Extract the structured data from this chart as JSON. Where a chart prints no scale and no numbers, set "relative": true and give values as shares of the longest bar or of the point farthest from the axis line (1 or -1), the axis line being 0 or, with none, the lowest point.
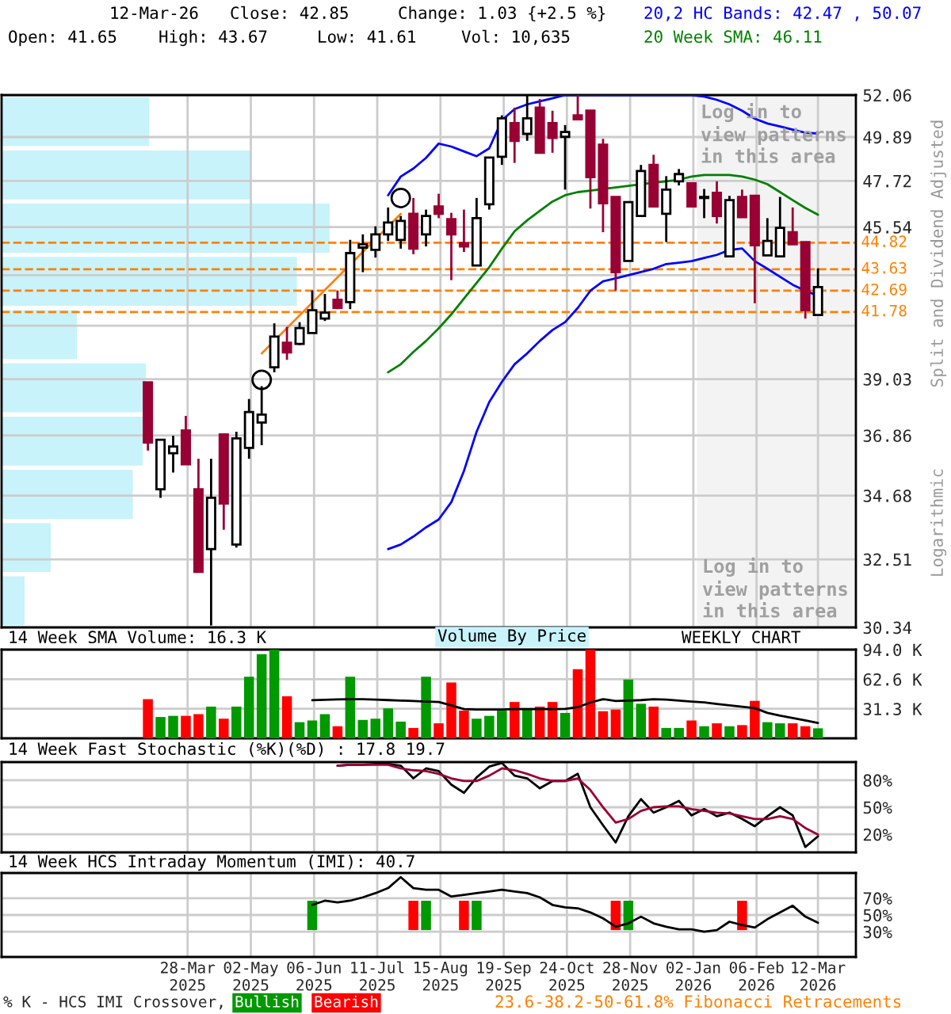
{
  "chart_data": [
    {
      "type": "candlestick",
      "ylabel": "Split and Dividend Adjusted",
      "annotations": [
        "12-Mar-26",
        "Close: 42.85",
        "Change: 1.03 {+2.5 %}",
        "Open: 41.65",
        "High: 43.67",
        "Low: 41.61",
        "Vol: 10,635",
        "Logarithmic",
        "Log in to\nview patterns\nin this area",
        "Volume By Price"
      ],
      "legend": "top right",
      "log": true,
      "grid": true,
      "tick_labels": "y",
      "x": [
        "2025-03-06",
        "2025-03-13",
        "2025-03-20",
        "2025-03-27",
        "2025-04-03",
        "2025-04-10",
        "2025-04-17",
        "2025-04-24",
        "2025-05-01",
        "2025-05-08",
        "2025-05-15",
        "2025-05-22",
        "2025-05-29",
        "2025-06-05",
        "2025-06-12",
        "2025-06-19",
        "2025-06-26",
        "2025-07-03",
        "2025-07-10",
        "2025-07-17",
        "2025-07-24",
        "2025-07-31",
        "2025-08-07",
        "2025-08-14",
        "2025-08-21",
        "2025-08-28",
        "2025-09-04",
        "2025-09-11",
        "2025-09-18",
        "2025-09-25",
        "2025-10-02",
        "2025-10-09",
        "2025-10-16",
        "2025-10-23",
        "2025-10-30",
        "2025-11-06",
        "2025-11-13",
        "2025-11-20",
        "2025-11-27",
        "2025-12-04",
        "2025-12-11",
        "2025-12-18",
        "2025-12-25",
        "2026-01-01",
        "2026-01-08",
        "2026-01-15",
        "2026-01-22",
        "2026-01-29",
        "2026-02-05",
        "2026-02-12",
        "2026-02-19",
        "2026-02-26",
        "2026-03-05",
        "2026-03-12"
      ],
      "ohlc": [
        [
          38.9,
          38.9,
          36.3,
          36.6
        ],
        [
          34.9,
          36.7,
          34.6,
          36.7
        ],
        [
          36.2,
          36.85,
          35.5,
          36.45
        ],
        [
          37.05,
          37.6,
          35.8,
          35.8
        ],
        [
          34.9,
          36.0,
          32.1,
          32.1
        ],
        [
          32.85,
          36.0,
          30.4,
          34.6
        ],
        [
          36.9,
          36.9,
          33.5,
          34.4
        ],
        [
          33.0,
          37.0,
          32.9,
          36.75
        ],
        [
          36.4,
          38.25,
          36.0,
          37.75
        ],
        [
          37.35,
          38.75,
          36.5,
          37.65
        ],
        [
          39.5,
          41.3,
          39.3,
          40.75
        ],
        [
          40.5,
          41.15,
          39.8,
          40.1
        ],
        [
          40.45,
          41.35,
          40.4,
          41.1
        ],
        [
          40.9,
          42.7,
          40.9,
          41.85
        ],
        [
          41.5,
          42.55,
          41.4,
          41.75
        ],
        [
          42.3,
          42.7,
          41.9,
          41.95
        ],
        [
          42.2,
          44.95,
          41.9,
          44.35
        ],
        [
          44.6,
          45.2,
          43.5,
          44.75
        ],
        [
          44.5,
          45.57,
          44.15,
          45.2
        ],
        [
          45.2,
          46.45,
          44.9,
          45.75
        ],
        [
          44.95,
          46.05,
          44.55,
          45.82
        ],
        [
          46.15,
          46.9,
          44.3,
          44.55
        ],
        [
          45.2,
          46.35,
          44.65,
          46.05
        ],
        [
          46.5,
          47.1,
          45.95,
          46.15
        ],
        [
          45.9,
          46.2,
          43.15,
          45.2
        ],
        [
          44.8,
          46.35,
          44.4,
          44.65
        ],
        [
          43.8,
          46.9,
          43.8,
          45.95
        ],
        [
          46.6,
          48.86,
          46.35,
          48.86
        ],
        [
          48.9,
          51.0,
          48.5,
          50.85
        ],
        [
          50.6,
          51.4,
          48.6,
          49.7
        ],
        [
          50.05,
          52.06,
          49.7,
          50.85
        ],
        [
          51.4,
          51.85,
          49.1,
          49.1
        ],
        [
          50.6,
          51.24,
          49.1,
          49.85
        ],
        [
          49.9,
          50.5,
          47.3,
          50.15
        ],
        [
          51.0,
          52.06,
          50.8,
          50.8
        ],
        [
          51.24,
          51.24,
          46.4,
          47.9
        ],
        [
          49.5,
          49.8,
          45.3,
          46.65
        ],
        [
          46.95,
          46.95,
          42.7,
          43.5
        ],
        [
          44.0,
          46.7,
          44.0,
          46.7
        ],
        [
          46.05,
          48.5,
          46.05,
          48.2
        ],
        [
          48.5,
          49.0,
          46.5,
          46.5
        ],
        [
          46.15,
          47.95,
          44.85,
          47.3
        ],
        [
          47.7,
          48.3,
          47.5,
          48.05
        ],
        [
          47.6,
          47.6,
          46.5,
          46.5
        ],
        [
          46.9,
          47.33,
          45.95,
          46.95
        ],
        [
          47.15,
          47.7,
          45.7,
          46.05
        ],
        [
          44.2,
          47.0,
          44.2,
          46.8
        ],
        [
          46.95,
          47.3,
          46.0,
          46.0
        ],
        [
          47.0,
          47.0,
          42.15,
          44.7
        ],
        [
          44.25,
          45.95,
          44.25,
          44.9
        ],
        [
          44.2,
          46.95,
          44.2,
          45.5
        ],
        [
          45.3,
          46.45,
          44.75,
          44.75
        ],
        [
          44.85,
          44.85,
          41.5,
          41.85
        ],
        [
          41.65,
          43.67,
          41.61,
          42.85
        ]
      ],
      "series": [
        {
          "type": "line",
          "name": "20,2 HC Bands: 42.47 , 50.07",
          "color": "#0000ff",
          "values": [
            null,
            null,
            null,
            null,
            null,
            null,
            null,
            null,
            null,
            null,
            null,
            null,
            null,
            null,
            null,
            null,
            null,
            null,
            null,
            47.03,
            47.93,
            48.32,
            48.85,
            49.56,
            49.41,
            49.17,
            48.93,
            49.32,
            50.75,
            51.32,
            51.57,
            51.73,
            51.89,
            52.06,
            52.06,
            52.06,
            52.06,
            52.06,
            52.06,
            52.06,
            52.06,
            52.06,
            52.06,
            52.06,
            51.98,
            51.81,
            51.57,
            51.24,
            50.83,
            50.58,
            50.43,
            50.27,
            50.11,
            50.07
          ]
        },
        {
          "type": "line",
          "color": "#0000ff",
          "values": [
            null,
            null,
            null,
            null,
            null,
            null,
            null,
            null,
            null,
            null,
            null,
            null,
            null,
            null,
            null,
            null,
            null,
            null,
            null,
            32.85,
            33.0,
            33.27,
            33.58,
            33.85,
            34.45,
            35.56,
            37.0,
            38.13,
            38.92,
            39.62,
            40.06,
            40.57,
            41.02,
            41.35,
            41.95,
            42.69,
            43.1,
            43.23,
            43.37,
            43.51,
            43.65,
            43.86,
            43.92,
            43.99,
            44.13,
            44.27,
            44.49,
            44.56,
            43.99,
            43.65,
            43.3,
            42.95,
            42.69,
            42.47
          ]
        },
        {
          "type": "line",
          "name": "20 Week SMA: 46.11",
          "color": "#008000",
          "values": [
            null,
            null,
            null,
            null,
            null,
            null,
            null,
            null,
            null,
            null,
            null,
            null,
            null,
            null,
            null,
            null,
            null,
            null,
            null,
            39.3,
            39.62,
            40.12,
            40.57,
            41.09,
            41.68,
            42.35,
            43.03,
            43.72,
            44.55,
            45.34,
            45.85,
            46.29,
            46.73,
            47.03,
            47.18,
            47.25,
            47.33,
            47.4,
            47.48,
            47.56,
            47.63,
            47.7,
            47.78,
            47.93,
            48.01,
            48.01,
            48.01,
            47.93,
            47.78,
            47.56,
            47.18,
            46.8,
            46.43,
            46.11
          ]
        },
        {
          "type": "line",
          "color": "#ff8000",
          "x": [
            "2025-05-08",
            "2025-07-24"
          ],
          "values": [
            40.06,
            46.15
          ]
        },
        {
          "type": "scatter",
          "color": "#000000",
          "marker": "circle",
          "x": [
            "2025-05-08",
            "2025-07-24"
          ],
          "values": [
            39.0,
            46.9
          ]
        }
      ],
      "xlim": [
        "2024-12-15",
        "2026-04-02"
      ],
      "xticks": [
        {
          "value": "2025-03-28",
          "label": null
        },
        {
          "value": "2025-05-02",
          "label": null
        },
        {
          "value": "2025-06-06",
          "label": null
        },
        {
          "value": "2025-07-11",
          "label": null
        },
        {
          "value": "2025-08-15",
          "label": null
        },
        {
          "value": "2025-09-19",
          "label": null
        },
        {
          "value": "2025-10-24",
          "label": null
        },
        {
          "value": "2025-11-28",
          "label": null
        },
        {
          "value": "2026-01-02",
          "label": null
        },
        {
          "value": "2026-02-06",
          "label": null
        },
        {
          "value": "2026-03-12",
          "label": null
        }
      ],
      "ylim": [
        30.34,
        52.06
      ],
      "yticks": [
        52.06,
        49.89,
        47.72,
        45.54,
        {
          "value": 43.37,
          "label": null
        },
        {
          "value": 41.2,
          "label": null
        },
        39.03,
        36.86,
        34.68,
        32.51,
        30.34
      ],
      "ref_lines": [
        {
          "axis": "y",
          "value": 44.82,
          "label": "44.82",
          "color": "#ff8000",
          "line_style": "dashed"
        },
        {
          "axis": "y",
          "value": 43.63,
          "label": "43.63",
          "color": "#ff8000",
          "line_style": "dashed"
        },
        {
          "axis": "y",
          "value": 42.69,
          "label": "42.69",
          "color": "#ff8000",
          "line_style": "dashed"
        },
        {
          "axis": "y",
          "value": 41.78,
          "label": "41.78",
          "color": "#ff8000",
          "line_style": "dashed"
        }
      ],
      "bands": [
        {
          "axis": "x",
          "from": "2026-01-04",
          "to": "2026-04-02",
          "label": "Log in to\nview patterns\nin this area",
          "color": "#f3f3f3"
        }
      ]
    },
    {
      "type": "bar",
      "orientation": "horizontal",
      "relative": true,
      "color": "#c8f3fa",
      "categories": [
        null,
        null,
        null,
        null,
        null,
        null,
        null,
        null,
        null,
        null
      ],
      "values": [
        0.45,
        0.76,
        1,
        0.9,
        0.23,
        0.44,
        0.43,
        0.4,
        0.15,
        0.07
      ]
    },
    {
      "type": "bar",
      "title": "14 Week SMA Volume: 16.3 K",
      "annotations": [
        "WEEKLY CHART"
      ],
      "grid": true,
      "tick_labels": "y",
      "x": [
        "2025-03-06",
        "2025-03-13",
        "2025-03-20",
        "2025-03-27",
        "2025-04-03",
        "2025-04-10",
        "2025-04-17",
        "2025-04-24",
        "2025-05-01",
        "2025-05-08",
        "2025-05-15",
        "2025-05-22",
        "2025-05-29",
        "2025-06-05",
        "2025-06-12",
        "2025-06-19",
        "2025-06-26",
        "2025-07-03",
        "2025-07-10",
        "2025-07-17",
        "2025-07-24",
        "2025-07-31",
        "2025-08-07",
        "2025-08-14",
        "2025-08-21",
        "2025-08-28",
        "2025-09-04",
        "2025-09-11",
        "2025-09-18",
        "2025-09-25",
        "2025-10-02",
        "2025-10-09",
        "2025-10-16",
        "2025-10-23",
        "2025-10-30",
        "2025-11-06",
        "2025-11-13",
        "2025-11-20",
        "2025-11-27",
        "2025-12-04",
        "2025-12-11",
        "2025-12-18",
        "2025-12-25",
        "2026-01-01",
        "2026-01-08",
        "2026-01-15",
        "2026-01-22",
        "2026-01-29",
        "2026-02-05",
        "2026-02-12",
        "2026-02-19",
        "2026-02-26",
        "2026-03-05",
        "2026-03-12"
      ],
      "series": [
        {
          "type": "bar",
          "colors": [
            "#ff0000",
            "#009900",
            "#009900",
            "#ff0000",
            "#ff0000",
            "#009900",
            "#ff0000",
            "#009900",
            "#009900",
            "#009900",
            "#009900",
            "#ff0000",
            "#009900",
            "#009900",
            "#009900",
            "#ff0000",
            "#009900",
            "#009900",
            "#009900",
            "#009900",
            "#009900",
            "#ff0000",
            "#009900",
            "#ff0000",
            "#ff0000",
            "#ff0000",
            "#009900",
            "#009900",
            "#009900",
            "#ff0000",
            "#009900",
            "#ff0000",
            "#ff0000",
            "#009900",
            "#ff0000",
            "#ff0000",
            "#ff0000",
            "#ff0000",
            "#009900",
            "#009900",
            "#ff0000",
            "#009900",
            "#009900",
            "#ff0000",
            "#009900",
            "#ff0000",
            "#009900",
            "#ff0000",
            "#ff0000",
            "#009900",
            "#009900",
            "#ff0000",
            "#ff0000",
            "#009900"
          ],
          "values": [
            41.5,
            22.6,
            23.8,
            23.8,
            25.6,
            33.6,
            20.8,
            33.6,
            65.3,
            89.1,
            94.0,
            44.6,
            17.1,
            18.9,
            25.6,
            12.8,
            65.3,
            19.5,
            20.8,
            31.7,
            17.7,
            11.0,
            65.3,
            15.9,
            59.2,
            29.3,
            20.8,
            23.8,
            29.3,
            38.5,
            31.1,
            33.6,
            38.5,
            26.9,
            73.2,
            94.0,
            28.7,
            30.5,
            62.3,
            36.6,
            33.6,
            11.0,
            11.0,
            18.9,
            12.8,
            15.9,
            12.8,
            14.0,
            39.7,
            17.1,
            15.9,
            15.9,
            12.8,
            10.6
          ]
        },
        {
          "type": "line",
          "color": "#000000",
          "values": [
            null,
            null,
            null,
            null,
            null,
            null,
            null,
            null,
            null,
            null,
            null,
            null,
            null,
            40.3,
            40.8,
            41.2,
            41.5,
            41.5,
            41.0,
            40.5,
            40.0,
            39.5,
            39.0,
            38.5,
            35.0,
            31.0,
            30.5,
            30.5,
            30.5,
            31.0,
            31.0,
            31.0,
            31.0,
            31.1,
            33.0,
            38.0,
            41.5,
            39.5,
            40.0,
            40.5,
            41.5,
            41.0,
            40.0,
            39.0,
            38.0,
            36.5,
            35.0,
            33.5,
            32.0,
            27.0,
            24.0,
            21.5,
            19.0,
            16.3
          ]
        }
      ],
      "xlim": [
        "2024-12-15",
        "2026-04-02"
      ],
      "xticks": [
        {
          "value": "2025-03-28",
          "label": null
        },
        {
          "value": "2025-05-02",
          "label": null
        },
        {
          "value": "2025-06-06",
          "label": null
        },
        {
          "value": "2025-07-11",
          "label": null
        },
        {
          "value": "2025-08-15",
          "label": null
        },
        {
          "value": "2025-09-19",
          "label": null
        },
        {
          "value": "2025-10-24",
          "label": null
        },
        {
          "value": "2025-11-28",
          "label": null
        },
        {
          "value": "2026-01-02",
          "label": null
        },
        {
          "value": "2026-02-06",
          "label": null
        },
        {
          "value": "2026-03-12",
          "label": null
        }
      ],
      "ylim": [
        0,
        94.0
      ],
      "yticks": [
        {
          "value": 31.3,
          "label": "31.3 K"
        },
        {
          "value": 62.6,
          "label": "62.6 K"
        },
        {
          "value": 94.0,
          "label": "94.0 K"
        }
      ]
    },
    {
      "type": "line",
      "title": "14 Week Fast Stochastic (%K)(%D) : 17.8 19.7",
      "grid": true,
      "tick_labels": "y",
      "series": [
        {
          "type": "line",
          "color": "#000000",
          "x": [
            "2025-06-19",
            "2025-06-26",
            "2025-07-03",
            "2025-07-10",
            "2025-07-17",
            "2025-07-24",
            "2025-07-31",
            "2025-08-07",
            "2025-08-14",
            "2025-08-21",
            "2025-08-28",
            "2025-09-04",
            "2025-09-11",
            "2025-09-18",
            "2025-09-25",
            "2025-10-02",
            "2025-10-09",
            "2025-10-16",
            "2025-10-23",
            "2025-10-30",
            "2025-11-06",
            "2025-11-13",
            "2025-11-20",
            "2025-11-27",
            "2025-12-04",
            "2025-12-11",
            "2025-12-18",
            "2025-12-25",
            "2026-01-01",
            "2026-01-08",
            "2026-01-15",
            "2026-01-22",
            "2026-01-29",
            "2026-02-05",
            "2026-02-12",
            "2026-02-19",
            "2026-02-26",
            "2026-03-05",
            "2026-03-12"
          ],
          "values": [
            96,
            97,
            97,
            98,
            98,
            96,
            82,
            93,
            90,
            75,
            66,
            83,
            95,
            99,
            85,
            82,
            71,
            79,
            79,
            87,
            50,
            30,
            11,
            40,
            59,
            44,
            50,
            57,
            41,
            48,
            40,
            44,
            37,
            29,
            40,
            50,
            41,
            6,
            17.8
          ]
        },
        {
          "type": "line",
          "color": "#990033",
          "x": [
            "2025-06-19",
            "2025-06-26",
            "2025-07-03",
            "2025-07-10",
            "2025-07-17",
            "2025-07-24",
            "2025-07-31",
            "2025-08-07",
            "2025-08-14",
            "2025-08-21",
            "2025-08-28",
            "2025-09-04",
            "2025-09-11",
            "2025-09-18",
            "2025-09-25",
            "2025-10-02",
            "2025-10-09",
            "2025-10-16",
            "2025-10-23",
            "2025-10-30",
            "2025-11-06",
            "2025-11-13",
            "2025-11-20",
            "2025-11-27",
            "2025-12-04",
            "2025-12-11",
            "2025-12-18",
            "2025-12-25",
            "2026-01-01",
            "2026-01-08",
            "2026-01-15",
            "2026-01-22",
            "2026-01-29",
            "2026-02-05",
            "2026-02-12",
            "2026-02-19",
            "2026-02-26",
            "2026-03-05",
            "2026-03-12"
          ],
          "values": [
            96,
            97,
            97,
            97,
            97,
            93,
            91,
            90,
            87,
            82,
            79,
            79,
            85,
            93,
            91,
            87,
            82,
            79,
            79,
            82,
            69,
            50,
            33,
            37,
            46,
            50,
            51,
            51,
            48,
            46,
            44,
            43,
            40,
            37,
            37,
            40,
            37,
            27,
            19.7
          ]
        }
      ],
      "xlim": [
        "2024-12-15",
        "2026-04-02"
      ],
      "xticks": [
        {
          "value": "2025-03-28",
          "label": null
        },
        {
          "value": "2025-05-02",
          "label": null
        },
        {
          "value": "2025-06-06",
          "label": null
        },
        {
          "value": "2025-07-11",
          "label": null
        },
        {
          "value": "2025-08-15",
          "label": null
        },
        {
          "value": "2025-09-19",
          "label": null
        },
        {
          "value": "2025-10-24",
          "label": null
        },
        {
          "value": "2025-11-28",
          "label": null
        },
        {
          "value": "2026-01-02",
          "label": null
        },
        {
          "value": "2026-02-06",
          "label": null
        },
        {
          "value": "2026-03-12",
          "label": null
        }
      ],
      "ylim": [
        0,
        100
      ],
      "yticks": [
        {
          "value": 20,
          "label": "20%"
        },
        {
          "value": 50,
          "label": "50%"
        },
        {
          "value": 80,
          "label": "80%"
        }
      ]
    },
    {
      "type": "line",
      "title": "14 Week HCS Intraday Momentum (IMI): 40.7",
      "grid": true,
      "legend": "bottom",
      "legend_title": "% K - HCS IMI Crossover,",
      "annotations": [
        "23.6-38.2-50-61.8% Fibonacci Retracements"
      ],
      "series": [
        {
          "type": "line",
          "color": "#000000",
          "x": [
            "2025-06-05",
            "2025-06-12",
            "2025-06-19",
            "2025-06-26",
            "2025-07-03",
            "2025-07-10",
            "2025-07-17",
            "2025-07-24",
            "2025-07-31",
            "2025-08-07",
            "2025-08-14",
            "2025-08-21",
            "2025-08-28",
            "2025-09-04",
            "2025-09-11",
            "2025-09-18",
            "2025-09-25",
            "2025-10-02",
            "2025-10-09",
            "2025-10-16",
            "2025-10-23",
            "2025-10-30",
            "2025-11-06",
            "2025-11-13",
            "2025-11-20",
            "2025-11-27",
            "2025-12-04",
            "2025-12-11",
            "2025-12-18",
            "2025-12-25",
            "2026-01-01",
            "2026-01-08",
            "2026-01-15",
            "2026-01-22",
            "2026-01-29",
            "2026-02-05",
            "2026-02-12",
            "2026-02-19",
            "2026-02-26",
            "2026-03-05",
            "2026-03-12"
          ],
          "values": [
            62,
            67,
            65,
            67,
            71,
            76,
            82,
            95,
            82,
            80,
            80,
            72,
            74,
            76,
            78,
            80,
            78,
            76,
            71,
            62,
            59,
            58,
            53,
            46,
            36,
            40,
            48,
            40,
            36,
            33,
            33,
            30,
            32,
            42,
            38,
            35,
            45,
            53,
            61,
            48,
            40.7
          ]
        },
        {
          "type": "bar",
          "name": "Bullish",
          "color": "#009900",
          "x": [
            "2025-06-05",
            "2025-08-07",
            "2025-09-04",
            "2025-11-27"
          ],
          "base": [
            32,
            32,
            32,
            32
          ],
          "values": [
            35,
            35,
            35,
            35
          ]
        },
        {
          "type": "bar",
          "name": "Bearish",
          "color": "#ff0000",
          "x": [
            "2025-07-31",
            "2025-08-28",
            "2025-11-20",
            "2026-01-29"
          ],
          "base": [
            32,
            32,
            32,
            32
          ],
          "values": [
            35,
            35,
            35,
            35
          ]
        }
      ],
      "xlim": [
        "2024-12-15",
        "2026-04-02"
      ],
      "xticks": [
        {
          "value": "2025-03-28",
          "label": "28-Mar\n2025"
        },
        {
          "value": "2025-05-02",
          "label": "02-May\n2025"
        },
        {
          "value": "2025-06-06",
          "label": "06-Jun\n2025"
        },
        {
          "value": "2025-07-11",
          "label": "11-Jul\n2025"
        },
        {
          "value": "2025-08-15",
          "label": "15-Aug\n2025"
        },
        {
          "value": "2025-09-19",
          "label": "19-Sep\n2025"
        },
        {
          "value": "2025-10-24",
          "label": "24-Oct\n2025"
        },
        {
          "value": "2025-11-28",
          "label": "28-Nov\n2025"
        },
        {
          "value": "2026-01-02",
          "label": "02-Jan\n2026"
        },
        {
          "value": "2026-02-06",
          "label": "06-Feb\n2026"
        },
        {
          "value": "2026-03-12",
          "label": "12-Mar\n2026"
        }
      ],
      "ylim": [
        0,
        100
      ],
      "yticks": [
        {
          "value": 30,
          "label": "30%"
        },
        {
          "value": 50,
          "label": "50%"
        },
        {
          "value": 70,
          "label": "70%"
        }
      ]
    }
  ]
}
